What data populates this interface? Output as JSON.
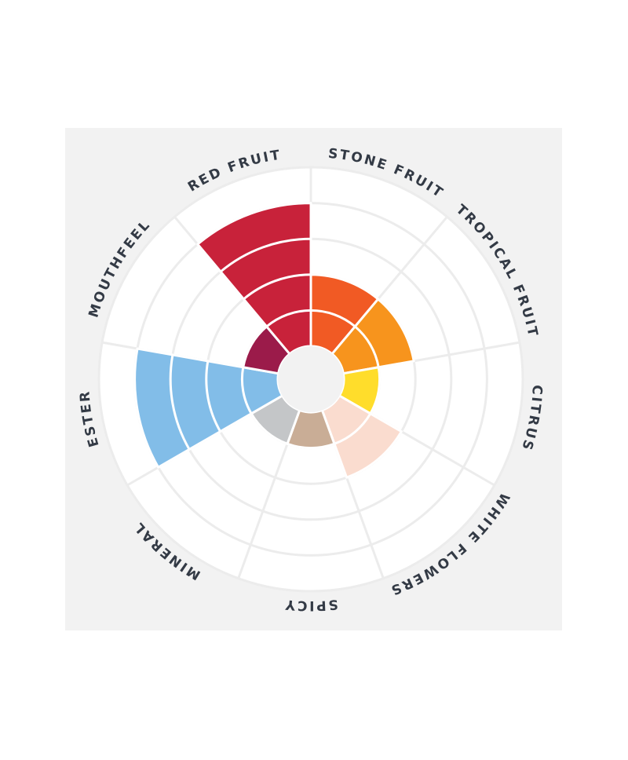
{
  "chart_data": {
    "type": "polar-area",
    "categories": [
      "STONE FRUIT",
      "TROPICAL FRUIT",
      "CITRUS",
      "WHITE FLOWERS",
      "SPICY",
      "MINERAL",
      "ESTER",
      "MOUTHFEEL",
      "RED FRUIT"
    ],
    "values": [
      2,
      2,
      1,
      2,
      1,
      1,
      4,
      1,
      4
    ],
    "colors": [
      "#f15a24",
      "#f7941d",
      "#ffdd2b",
      "#fadccf",
      "#c9ad96",
      "#c4c6c8",
      "#82bde8",
      "#9b1b4a",
      "#c8223a"
    ],
    "rlim": [
      0,
      5
    ],
    "rticks": [
      1,
      2,
      3,
      4,
      5
    ],
    "grid": true
  }
}
